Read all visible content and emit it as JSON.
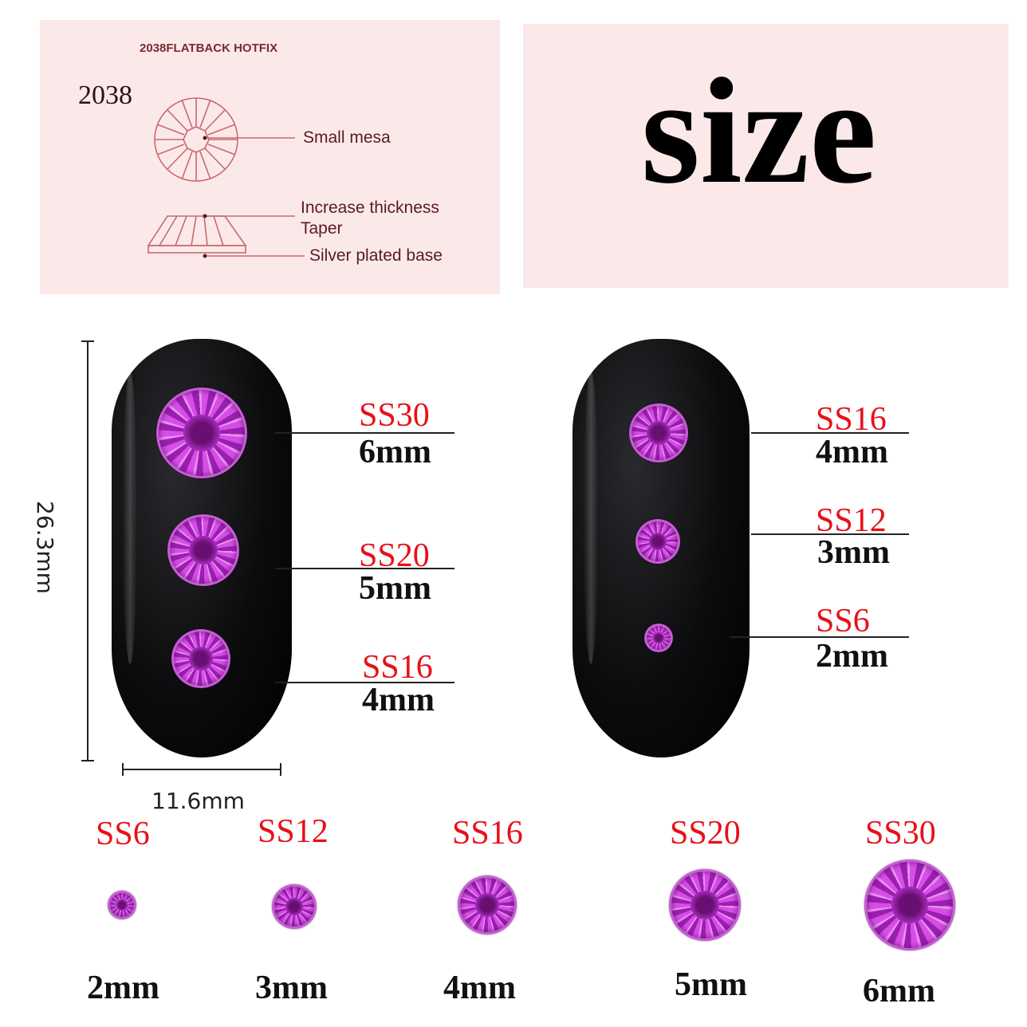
{
  "diagram": {
    "header": "2038FLATBACK HOTFIX",
    "model": "2038",
    "labels": {
      "small_mesa": "Small mesa",
      "increase_thickness": "Increase thickness",
      "taper": "Taper",
      "silver_base": "Silver plated base"
    },
    "line_color": "#c86a6a",
    "panel_color": "#fbe9ea"
  },
  "title_panel": {
    "title": "size"
  },
  "nail_dimensions": {
    "height": "26.3mm",
    "width": "11.6mm"
  },
  "nail_left": [
    {
      "code": "SS30",
      "size": "6mm"
    },
    {
      "code": "SS20",
      "size": "5mm"
    },
    {
      "code": "SS16",
      "size": "4mm"
    }
  ],
  "nail_right": [
    {
      "code": "SS16",
      "size": "4mm"
    },
    {
      "code": "SS12",
      "size": "3mm"
    },
    {
      "code": "SS6",
      "size": "2mm"
    }
  ],
  "size_row": [
    {
      "code": "SS6",
      "size": "2mm"
    },
    {
      "code": "SS12",
      "size": "3mm"
    },
    {
      "code": "SS16",
      "size": "4mm"
    },
    {
      "code": "SS20",
      "size": "5mm"
    },
    {
      "code": "SS30",
      "size": "6mm"
    }
  ],
  "colors": {
    "code_red": "#e8101a",
    "stone_purple": "#b23cc8"
  }
}
